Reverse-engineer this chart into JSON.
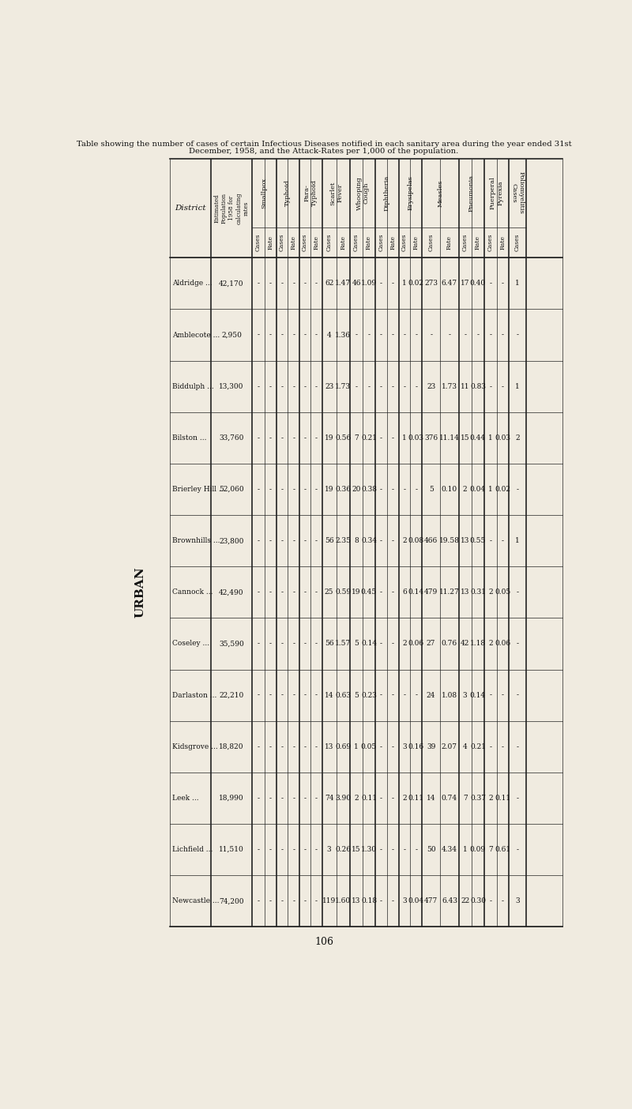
{
  "title_line1": "Table showing the number of cases of certain Infectious Diseases notified in each sanitary area during the year ended 31st",
  "title_line2": "December, 1958, and the Attack-Rates per 1,000 of the population.",
  "subtitle": "URBAN",
  "page_number": "106",
  "districts": [
    "Aldridge",
    "Amblecote",
    "Biddulph",
    "Bilston",
    "Brierley Hill",
    "Brownhills ...",
    "Cannock",
    "Coseley",
    "Darlaston",
    "Kidsgrove",
    "Leek ...",
    "Lichfield",
    "Newcastle"
  ],
  "district_dots": [
    " ...",
    " ...",
    " ...",
    " ...",
    " ...",
    "",
    " ...",
    " ...",
    " ...",
    " ...",
    "",
    " ...",
    " ..."
  ],
  "populations": [
    "42,170",
    "2,950",
    "13,300",
    "33,760",
    "52,060",
    "23,800",
    "42,490",
    "35,590",
    "22,210",
    "18,820",
    "18,990",
    "11,510",
    "74,200"
  ],
  "smallpox_cases": [
    "-",
    "-",
    "-",
    "-",
    "-",
    "-",
    "-",
    "-",
    "-",
    "-",
    "-",
    "-",
    "-"
  ],
  "smallpox_rate": [
    "-",
    "-",
    "-",
    "-",
    "-",
    "-",
    "-",
    "-",
    "-",
    "-",
    "-",
    "-",
    "-"
  ],
  "typhoid_cases": [
    "-",
    "-",
    "-",
    "-",
    "-",
    "-",
    "-",
    "-",
    "-",
    "-",
    "-",
    "-",
    "-"
  ],
  "typhoid_rate": [
    "-",
    "-",
    "-",
    "-",
    "-",
    "-",
    "-",
    "-",
    "-",
    "-",
    "-",
    "-",
    "-"
  ],
  "paratyphoid_cases": [
    "-",
    "-",
    "-",
    "-",
    "-",
    "-",
    "-",
    "-",
    "-",
    "-",
    "-",
    "-",
    "-"
  ],
  "paratyphoid_rate": [
    "-",
    "-",
    "-",
    "-",
    "-",
    "-",
    "-",
    "-",
    "-",
    "-",
    "-",
    "-",
    "-"
  ],
  "scarlet_fever_cases": [
    "62",
    "4",
    "23",
    "19",
    "19",
    "56",
    "25",
    "56",
    "14",
    "13",
    "74",
    "3",
    "119"
  ],
  "scarlet_fever_rate": [
    "1.47",
    "1.36",
    "1.73",
    "0.56",
    "0.36",
    "2.35",
    "0.59",
    "1.57",
    "0.63",
    "0.69",
    "3.90",
    "0.26",
    "1.60"
  ],
  "whooping_cough_cases": [
    "46",
    "-",
    "-",
    "7",
    "20",
    "8",
    "19",
    "5",
    "5",
    "1",
    "2",
    "15",
    "13"
  ],
  "whooping_cough_rate": [
    "1.09",
    "-",
    "-",
    "0.21",
    "0.38",
    "0.34",
    "0.45",
    "0.14",
    "0.23",
    "0.05",
    "0.11",
    "1.30",
    "0.18"
  ],
  "diphtheria_cases": [
    "-",
    "-",
    "-",
    "-",
    "-",
    "-",
    "-",
    "-",
    "-",
    "-",
    "-",
    "-",
    "-"
  ],
  "diphtheria_rate": [
    "-",
    "-",
    "-",
    "-",
    "-",
    "-",
    "-",
    "-",
    "-",
    "-",
    "-",
    "-",
    "-"
  ],
  "erysipelas_cases": [
    "1",
    "-",
    "-",
    "1",
    "-",
    "2",
    "6",
    "2",
    "-",
    "3",
    "2",
    "-",
    "3"
  ],
  "erysipelas_rate": [
    "0.02",
    "-",
    "-",
    "0.03",
    "-",
    "0.08",
    "0.14",
    "0.06",
    "-",
    "0.16",
    "0.11",
    "-",
    "0.04"
  ],
  "measles_cases": [
    "273",
    "-",
    "23",
    "376",
    "5",
    "466",
    "479",
    "27",
    "24",
    "39",
    "14",
    "50",
    "477"
  ],
  "measles_rate": [
    "6.47",
    "-",
    "1.73",
    "11.14",
    "0.10",
    "19.58",
    "11.27",
    "0.76",
    "1.08",
    "2.07",
    "0.74",
    "4.34",
    "6.43"
  ],
  "pneumonia_cases": [
    "17",
    "-",
    "11",
    "15",
    "2",
    "13",
    "13",
    "42",
    "3",
    "4",
    "7",
    "1",
    "22"
  ],
  "pneumonia_rate": [
    "0.40",
    "-",
    "0.83",
    "0.44",
    "0.04",
    "0.55",
    "0.31",
    "1.18",
    "0.14",
    "0.21",
    "0.37",
    "0.09",
    "0.30"
  ],
  "puerperal_cases": [
    "-",
    "-",
    "-",
    "1",
    "1",
    "-",
    "2",
    "2",
    "-",
    "-",
    "2",
    "7",
    "-"
  ],
  "puerperal_rate": [
    "-",
    "-",
    "-",
    "0.03",
    "0.02",
    "-",
    "0.05",
    "0.06",
    "-",
    "-",
    "0.11",
    "0.61",
    "-"
  ],
  "polio_cases": [
    "1",
    "-",
    "1",
    "2",
    "-",
    "1",
    "-",
    "-",
    "-",
    "-",
    "-",
    "-",
    "3"
  ],
  "bg_color": "#f0ebe0",
  "line_color": "#222222",
  "text_color": "#111111"
}
